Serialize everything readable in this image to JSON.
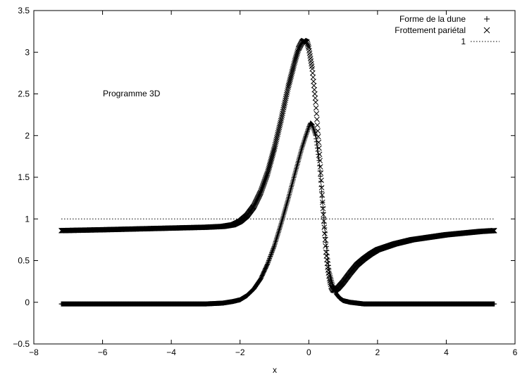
{
  "chart_data": {
    "type": "scatter",
    "title": "",
    "xlabel": "x",
    "ylabel": "",
    "xlim": [
      -8,
      6
    ],
    "ylim": [
      -0.5,
      3.5
    ],
    "xticks": [
      -8,
      -6,
      -4,
      -2,
      0,
      2,
      4,
      6
    ],
    "yticks": [
      -0.5,
      0,
      0.5,
      1,
      1.5,
      2,
      2.5,
      3,
      3.5
    ],
    "xtick_labels": [
      "−8",
      "−6",
      "−4",
      "−2",
      "0",
      "2",
      "4",
      "6"
    ],
    "ytick_labels": [
      "−0.5",
      "0",
      "0.5",
      "1",
      "1.5",
      "2",
      "2.5",
      "3",
      "3.5"
    ],
    "grid": false,
    "legend_position": "top-right",
    "annotation": "Programme 3D",
    "series": [
      {
        "name": "Forme de la dune",
        "marker": "+",
        "color": "#000000",
        "points": [
          [
            -7.2,
            -0.02
          ],
          [
            -6.0,
            -0.02
          ],
          [
            -5.0,
            -0.02
          ],
          [
            -4.0,
            -0.02
          ],
          [
            -3.5,
            -0.02
          ],
          [
            -3.0,
            -0.02
          ],
          [
            -2.5,
            -0.01
          ],
          [
            -2.2,
            0.01
          ],
          [
            -2.0,
            0.03
          ],
          [
            -1.8,
            0.08
          ],
          [
            -1.6,
            0.16
          ],
          [
            -1.4,
            0.28
          ],
          [
            -1.2,
            0.46
          ],
          [
            -1.0,
            0.68
          ],
          [
            -0.8,
            0.95
          ],
          [
            -0.6,
            1.24
          ],
          [
            -0.4,
            1.55
          ],
          [
            -0.2,
            1.85
          ],
          [
            -0.1,
            1.98
          ],
          [
            0.0,
            2.1
          ],
          [
            0.05,
            2.15
          ],
          [
            0.1,
            2.13
          ],
          [
            0.2,
            2.0
          ],
          [
            0.3,
            1.7
          ],
          [
            0.35,
            1.45
          ],
          [
            0.4,
            1.2
          ],
          [
            0.45,
            0.95
          ],
          [
            0.5,
            0.72
          ],
          [
            0.55,
            0.52
          ],
          [
            0.6,
            0.36
          ],
          [
            0.7,
            0.2
          ],
          [
            0.8,
            0.1
          ],
          [
            0.9,
            0.05
          ],
          [
            1.0,
            0.02
          ],
          [
            1.2,
            0.0
          ],
          [
            1.4,
            -0.01
          ],
          [
            1.6,
            -0.02
          ],
          [
            2.0,
            -0.02
          ],
          [
            3.0,
            -0.02
          ],
          [
            4.0,
            -0.02
          ],
          [
            5.4,
            -0.02
          ]
        ]
      },
      {
        "name": "Frottement pariétal",
        "marker": "×",
        "color": "#000000",
        "points": [
          [
            -7.2,
            0.86
          ],
          [
            -6.0,
            0.87
          ],
          [
            -5.0,
            0.88
          ],
          [
            -4.0,
            0.89
          ],
          [
            -3.0,
            0.9
          ],
          [
            -2.5,
            0.91
          ],
          [
            -2.2,
            0.93
          ],
          [
            -2.0,
            0.97
          ],
          [
            -1.8,
            1.04
          ],
          [
            -1.6,
            1.15
          ],
          [
            -1.4,
            1.32
          ],
          [
            -1.2,
            1.55
          ],
          [
            -1.0,
            1.85
          ],
          [
            -0.8,
            2.2
          ],
          [
            -0.6,
            2.58
          ],
          [
            -0.4,
            2.9
          ],
          [
            -0.3,
            3.04
          ],
          [
            -0.2,
            3.12
          ],
          [
            -0.15,
            3.14
          ],
          [
            -0.05,
            3.12
          ],
          [
            0.0,
            3.05
          ],
          [
            0.1,
            2.8
          ],
          [
            0.2,
            2.4
          ],
          [
            0.3,
            1.85
          ],
          [
            0.35,
            1.55
          ],
          [
            0.4,
            1.2
          ],
          [
            0.45,
            0.9
          ],
          [
            0.5,
            0.6
          ],
          [
            0.55,
            0.42
          ],
          [
            0.6,
            0.28
          ],
          [
            0.65,
            0.19
          ],
          [
            0.7,
            0.15
          ],
          [
            0.75,
            0.14
          ],
          [
            0.85,
            0.17
          ],
          [
            1.0,
            0.24
          ],
          [
            1.2,
            0.35
          ],
          [
            1.4,
            0.45
          ],
          [
            1.6,
            0.52
          ],
          [
            1.8,
            0.58
          ],
          [
            2.0,
            0.63
          ],
          [
            2.5,
            0.7
          ],
          [
            3.0,
            0.75
          ],
          [
            3.5,
            0.78
          ],
          [
            4.0,
            0.81
          ],
          [
            4.5,
            0.83
          ],
          [
            5.0,
            0.85
          ],
          [
            5.4,
            0.86
          ]
        ]
      },
      {
        "name": "1",
        "style": "dotted-line",
        "color": "#000000",
        "points": [
          [
            -7.2,
            1
          ],
          [
            5.4,
            1
          ]
        ]
      }
    ]
  }
}
